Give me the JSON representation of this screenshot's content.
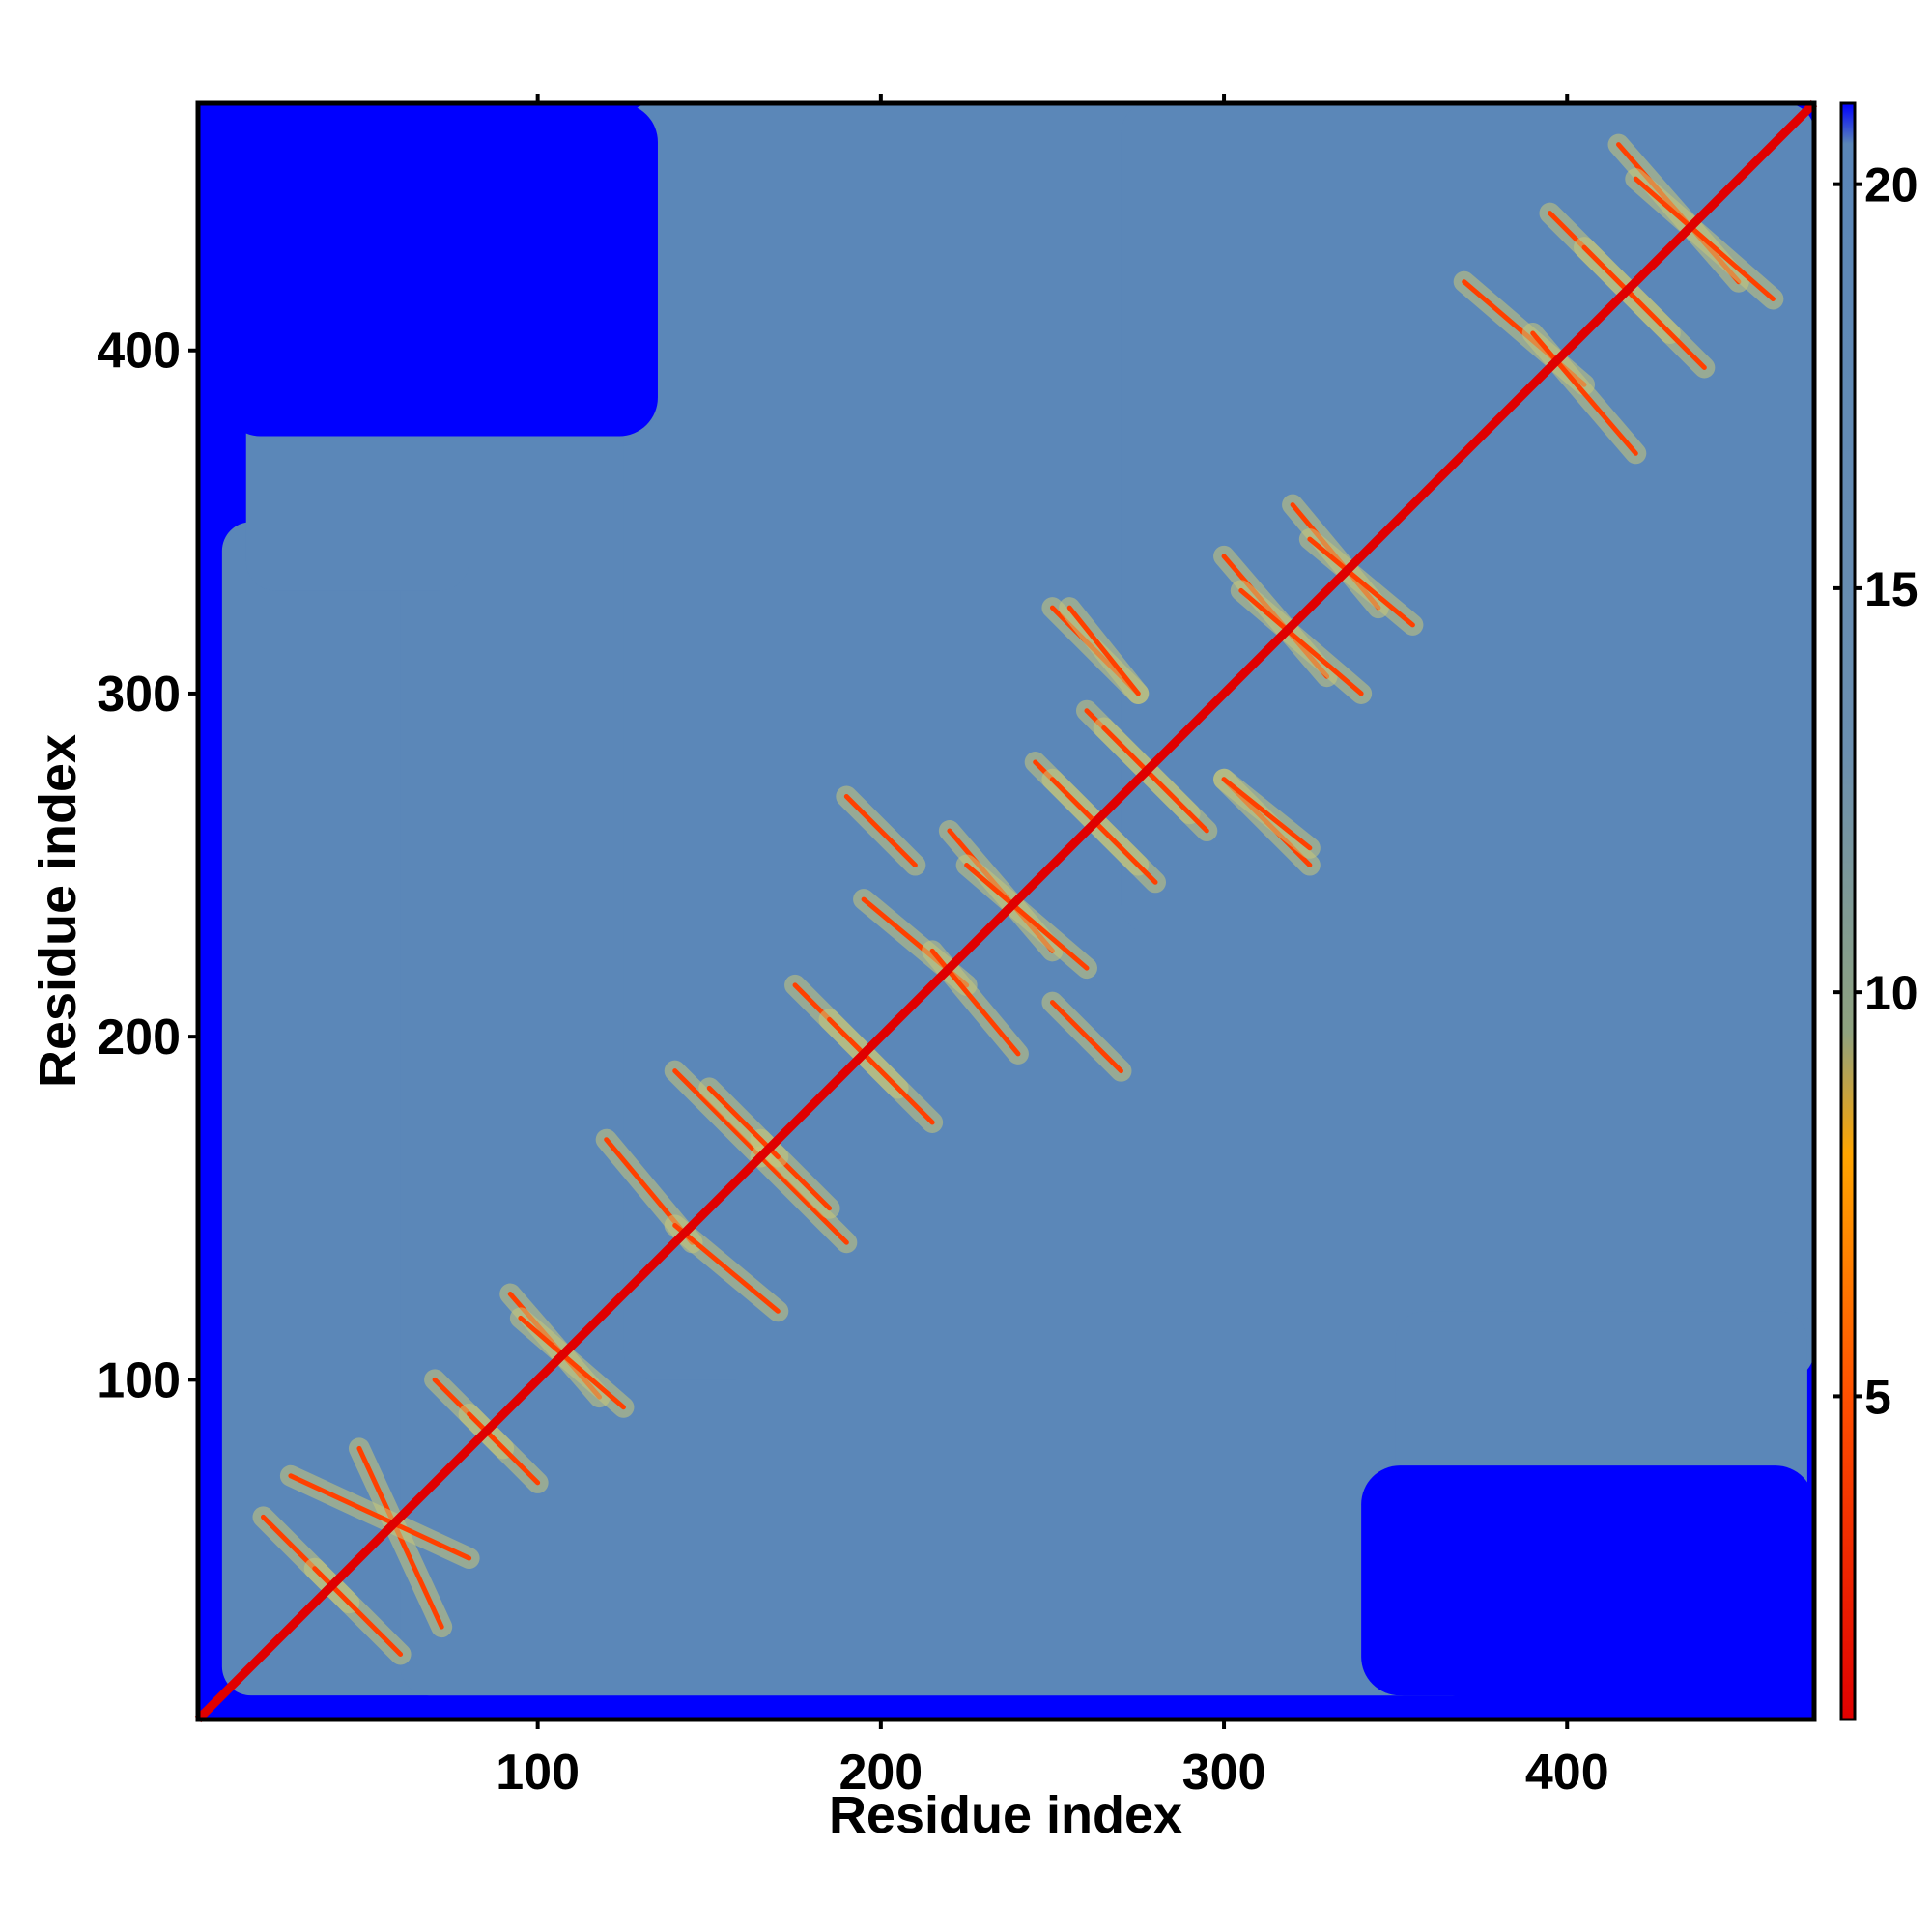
{
  "chart_data": {
    "type": "heatmap",
    "title": "",
    "xlabel": "Residue index",
    "ylabel": "Residue index",
    "xlim": [
      1,
      472
    ],
    "ylim": [
      1,
      472
    ],
    "x_ticks": [
      100,
      200,
      300,
      400
    ],
    "y_ticks": [
      100,
      200,
      300,
      400
    ],
    "colorbar": {
      "range": [
        1,
        21
      ],
      "ticks": [
        5,
        10,
        15,
        20
      ],
      "colors": [
        {
          "value": 1,
          "color": "#e00000"
        },
        {
          "value": 5,
          "color": "#ff5000"
        },
        {
          "value": 8,
          "color": "#ffa500"
        },
        {
          "value": 9.5,
          "color": "#8fa27f"
        },
        {
          "value": 13,
          "color": "#6b8fb0"
        },
        {
          "value": 20.5,
          "color": "#5a86b8"
        },
        {
          "value": 21,
          "color": "#0000ff"
        }
      ]
    },
    "cutoff_value": 21,
    "background_color": "#0000ff",
    "field_color": "#5b87b8",
    "contact_color": "#ff4000",
    "diagonal": {
      "from": [
        1,
        1
      ],
      "to": [
        472,
        472
      ],
      "value": 1
    },
    "domain_blocks": [
      {
        "x": [
          8,
          375
        ],
        "y": [
          8,
          350
        ]
      },
      {
        "x": [
          60,
          360
        ],
        "y": [
          8,
          380
        ]
      },
      {
        "x": [
          125,
          472
        ],
        "y": [
          100,
          472
        ]
      },
      {
        "x": [
          270,
          472
        ],
        "y": [
          230,
          472
        ]
      },
      {
        "x": [
          15,
          80
        ],
        "y": [
          330,
          465
        ]
      },
      {
        "x": [
          350,
          470
        ],
        "y": [
          20,
          120
        ]
      }
    ],
    "empty_regions": [
      {
        "x": [
          8,
          135
        ],
        "y": [
          375,
          472
        ]
      },
      {
        "x": [
          340,
          472
        ],
        "y": [
          8,
          75
        ]
      }
    ],
    "contact_segments": [
      {
        "x1": 20,
        "y1": 60,
        "x2": 45,
        "y2": 35
      },
      {
        "x1": 48,
        "y1": 80,
        "x2": 72,
        "y2": 28
      },
      {
        "x1": 70,
        "y1": 100,
        "x2": 90,
        "y2": 80
      },
      {
        "x1": 92,
        "y1": 125,
        "x2": 118,
        "y2": 95
      },
      {
        "x1": 120,
        "y1": 170,
        "x2": 145,
        "y2": 140
      },
      {
        "x1": 140,
        "y1": 190,
        "x2": 165,
        "y2": 165
      },
      {
        "x1": 165,
        "y1": 170,
        "x2": 185,
        "y2": 150
      },
      {
        "x1": 175,
        "y1": 215,
        "x2": 205,
        "y2": 185
      },
      {
        "x1": 195,
        "y1": 240,
        "x2": 225,
        "y2": 215
      },
      {
        "x1": 220,
        "y1": 260,
        "x2": 250,
        "y2": 225
      },
      {
        "x1": 245,
        "y1": 280,
        "x2": 275,
        "y2": 250
      },
      {
        "x1": 260,
        "y1": 295,
        "x2": 290,
        "y2": 265
      },
      {
        "x1": 300,
        "y1": 340,
        "x2": 330,
        "y2": 305
      },
      {
        "x1": 320,
        "y1": 355,
        "x2": 345,
        "y2": 325
      },
      {
        "x1": 370,
        "y1": 420,
        "x2": 405,
        "y2": 390
      },
      {
        "x1": 395,
        "y1": 440,
        "x2": 430,
        "y2": 405
      },
      {
        "x1": 415,
        "y1": 460,
        "x2": 450,
        "y2": 420
      },
      {
        "x1": 250,
        "y1": 325,
        "x2": 275,
        "y2": 300
      },
      {
        "x1": 300,
        "y1": 275,
        "x2": 325,
        "y2": 255
      },
      {
        "x1": 250,
        "y1": 210,
        "x2": 270,
        "y2": 190
      }
    ]
  }
}
